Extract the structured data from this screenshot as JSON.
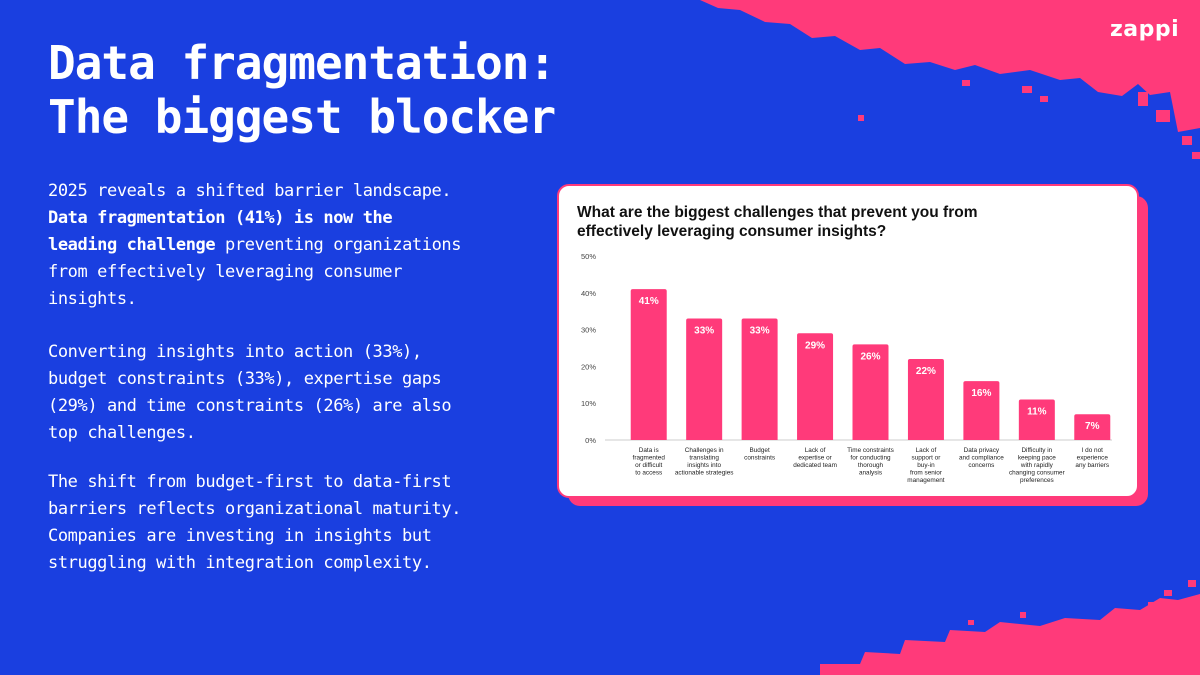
{
  "brand": {
    "logo_text": "zappi"
  },
  "heading": {
    "line1": "Data fragmentation:",
    "line2": "The biggest blocker"
  },
  "body": {
    "p1_intro": "2025 reveals a shifted barrier landscape. ",
    "p1_bold": "Data fragmentation (41%) is now the leading challenge",
    "p1_rest": " preventing organizations from effectively leveraging consumer insights.",
    "p2": "Converting insights into action (33%), budget constraints (33%), expertise gaps (29%) and time constraints (26%) are also top challenges.",
    "p3": "The shift from budget-first to data-first barriers reflects organizational maturity. Companies are investing in insights but struggling with integration complexity."
  },
  "colors": {
    "background": "#1a3fe0",
    "accent_pink": "#ff3a7a",
    "text_light": "#ffffff",
    "text_dark": "#111111"
  },
  "chart_data": {
    "type": "bar",
    "title": "What are the biggest challenges that prevent you from effectively leveraging consumer insights?",
    "xlabel": "",
    "ylabel": "",
    "ylim": [
      0,
      50
    ],
    "yticks": [
      0,
      10,
      20,
      30,
      40,
      50
    ],
    "ytick_labels": [
      "0%",
      "10%",
      "20%",
      "30%",
      "40%",
      "50%"
    ],
    "grid": false,
    "bar_color": "#ff3a7a",
    "categories": [
      [
        "Data is",
        "fragmented",
        "or difficult",
        "to access"
      ],
      [
        "Challenges in",
        "translating",
        "insights into",
        "actionable strategies"
      ],
      [
        "Budget",
        "constraints"
      ],
      [
        "Lack of",
        "expertise or",
        "dedicated team"
      ],
      [
        "Time constraints",
        "for conducting",
        "thorough",
        "analysis"
      ],
      [
        "Lack of",
        "support or",
        "buy-in",
        "from senior",
        "management"
      ],
      [
        "Data privacy",
        "and compliance",
        "concerns"
      ],
      [
        "Difficulty in",
        "keeping pace",
        "with rapidly",
        "changing consumer",
        "preferences"
      ],
      [
        "I do not",
        "experience",
        "any barriers"
      ]
    ],
    "values": [
      41,
      33,
      33,
      29,
      26,
      22,
      16,
      11,
      7
    ],
    "data_labels": [
      "41%",
      "33%",
      "33%",
      "29%",
      "26%",
      "22%",
      "16%",
      "11%",
      "7%"
    ]
  }
}
